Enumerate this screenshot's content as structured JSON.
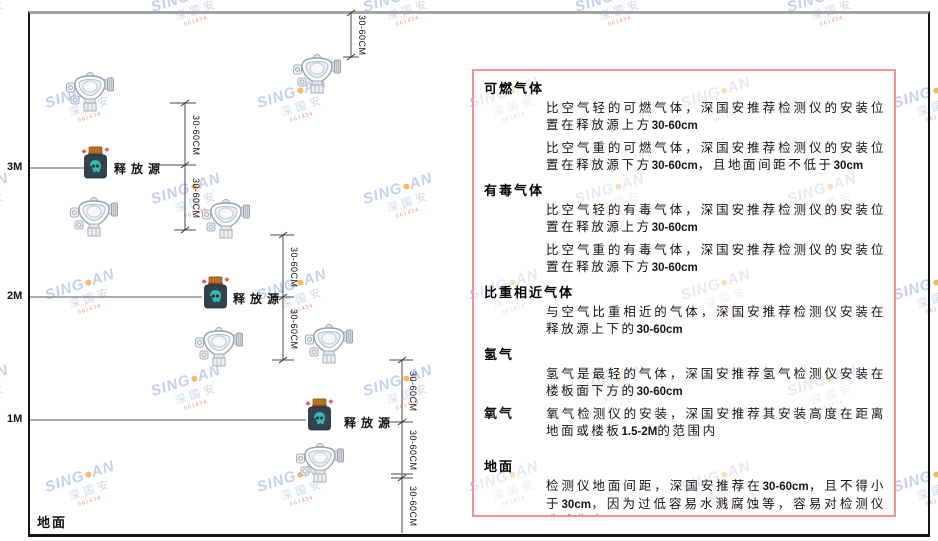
{
  "diagram": {
    "ground_label": "地面",
    "levels": [
      {
        "label": "3M"
      },
      {
        "label": "2M"
      },
      {
        "label": "1M"
      }
    ],
    "release_source_label": "释放源",
    "dimension_label": "30-60CM"
  },
  "panel": {
    "sections": [
      {
        "heading": "可燃气体",
        "inline": false,
        "paragraphs": [
          "比空气轻的可燃气体，深国安推荐检测仪的安装位置在释放源上方30-60cm",
          "比空气重的可燃气体，深国安推荐检测仪的安装位置在释放源下方30-60cm，且地面间距不低于30cm"
        ]
      },
      {
        "heading": "有毒气体",
        "inline": false,
        "paragraphs": [
          "比空气轻的有毒气体，深国安推荐检测仪的安装位置在释放源上方30-60cm",
          "比空气重的有毒气体，深国安推荐检测仪的安装位置在释放源下方30-60cm"
        ]
      },
      {
        "heading": "比重相近气体",
        "inline": false,
        "paragraphs": [
          "与空气比重相近的气体，深国安推荐检测仪安装在释放源上下的30-60cm"
        ]
      },
      {
        "heading": "氢气",
        "inline": false,
        "paragraphs": [
          "氢气是最轻的气体，深国安推荐氢气检测仪安装在楼板面下方的30-60cm"
        ]
      },
      {
        "heading": "氧气",
        "inline": true,
        "paragraphs": [
          "氧气检测仪的安装，深国安推荐其安装高度在距离地面或楼板1.5-2M的范围内"
        ]
      },
      {
        "heading": "地面",
        "inline": false,
        "paragraphs": [
          "检测仪地面间距，深国安推荐在30-60cm，且不得小于30cm，因为过低容易水溅腐蚀等，容易对检测仪造成伤害"
        ]
      }
    ]
  },
  "watermark": {
    "brand_left": "SING",
    "brand_right": "AN",
    "cjk": "深国安",
    "code": "661434"
  },
  "colors": {
    "panel_border": "#f49191",
    "source_body": "#32424e",
    "source_cap": "#c8772e",
    "source_face": "#38b8ae",
    "frame_border": "#141414",
    "ceiling_line": "#a3a3a3",
    "level_line": "#909090"
  }
}
